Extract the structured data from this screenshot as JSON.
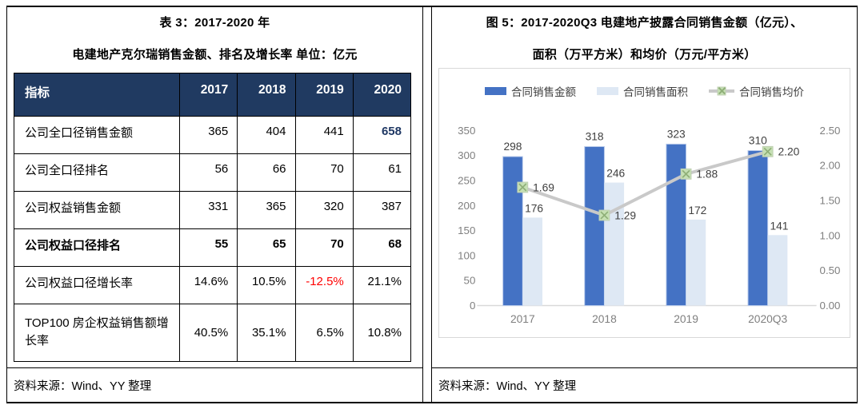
{
  "left_panel": {
    "title_line1": "表 3：2017-2020 年",
    "title_line2": "电建地产克尔瑞销售金额、排名及增长率 单位：亿元",
    "table": {
      "header": [
        "指标",
        "2017",
        "2018",
        "2019",
        "2020"
      ],
      "rows": [
        {
          "label": "公司全口径销售金额",
          "values": [
            "365",
            "404",
            "441",
            "658"
          ],
          "highlight": [
            3
          ],
          "highlight_color": "#1F3864",
          "highlight_bold": true
        },
        {
          "label": "公司全口径排名",
          "values": [
            "56",
            "66",
            "70",
            "61"
          ]
        },
        {
          "label": "公司权益销售金额",
          "values": [
            "331",
            "365",
            "320",
            "387"
          ]
        },
        {
          "label": "公司权益口径排名",
          "values": [
            "55",
            "65",
            "70",
            "68"
          ],
          "bold": true
        },
        {
          "label": "公司权益口径增长率",
          "values": [
            "14.6%",
            "10.5%",
            "-12.5%",
            "21.1%"
          ],
          "highlight": [
            2
          ],
          "highlight_color": "#FF0000"
        },
        {
          "label": "TOP100 房企权益销售额增长率",
          "values": [
            "40.5%",
            "35.1%",
            "6.5%",
            "10.8%"
          ],
          "tall": true
        }
      ]
    },
    "source": "资料来源：Wind、YY 整理"
  },
  "right_panel": {
    "title_line1": "图 5：2017-2020Q3 电建地产披露合同销售金额（亿元）、",
    "title_line2": "面积（万平方米）和均价（万元/平方米）",
    "source": "资料来源：Wind、YY 整理"
  },
  "colors": {
    "table_header_bg": "#203A61",
    "accent_value": "#1F3864",
    "negative_value": "#FF0000",
    "bar_sales_amount": "#4472C4",
    "bar_sales_area": "#DEE8F4",
    "line_avg_price": "#C9C9C9",
    "marker_fill": "#C6E0B4",
    "marker_cross": "#8FAF78",
    "axis_text": "#7F7F7F",
    "data_label_text": "#404040"
  },
  "chart_data": {
    "type": "bar+line combo",
    "categories": [
      "2017",
      "2018",
      "2019",
      "2020Q3"
    ],
    "series": [
      {
        "name": "合同销售金额",
        "type": "bar",
        "axis": "left",
        "color": "#4472C4",
        "values": [
          298,
          318,
          323,
          310
        ]
      },
      {
        "name": "合同销售面积",
        "type": "bar",
        "axis": "left",
        "color": "#DEE8F4",
        "values": [
          176,
          246,
          172,
          141
        ]
      },
      {
        "name": "合同销售均价",
        "type": "line",
        "axis": "right",
        "color": "#C9C9C9",
        "marker": "x-square",
        "marker_color": "#C6E0B4",
        "values": [
          1.69,
          1.29,
          1.88,
          2.2
        ],
        "labels": [
          "1.69",
          "1.29",
          "1.88",
          "2.20"
        ]
      }
    ],
    "left_axis": {
      "min": 0,
      "max": 350,
      "step": 50,
      "tick_labels": [
        "0",
        "50",
        "100",
        "150",
        "200",
        "250",
        "300",
        "350"
      ]
    },
    "right_axis": {
      "min": 0,
      "max": 2.5,
      "step": 0.5,
      "tick_labels": [
        "0.00",
        "0.50",
        "1.00",
        "1.50",
        "2.00",
        "2.50"
      ]
    },
    "legend_position": "top",
    "grid": false
  }
}
